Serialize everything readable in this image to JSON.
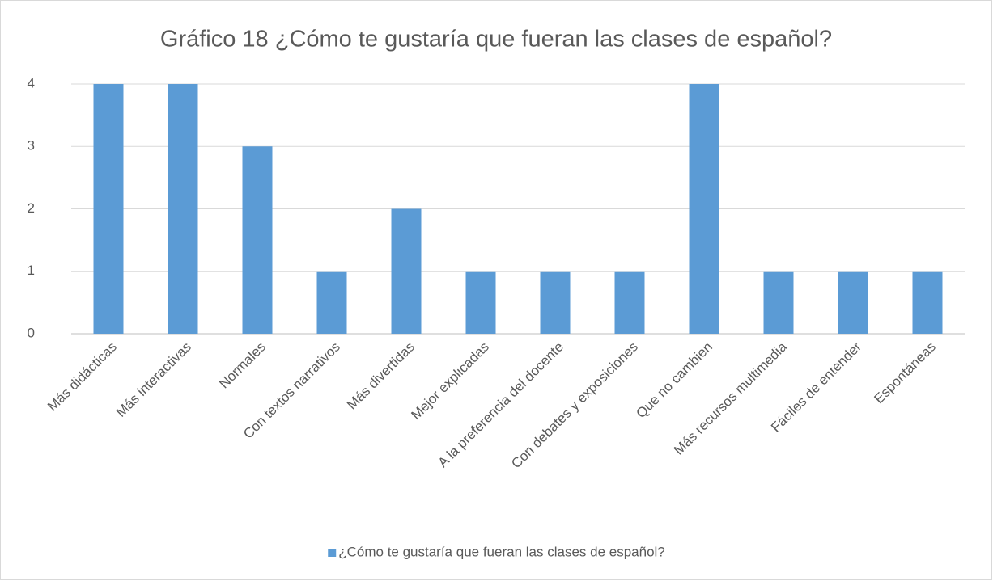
{
  "chart_data": {
    "type": "bar",
    "title": "Gráfico 18 ¿Cómo te gustaría que fueran las clases de español?",
    "categories": [
      "Más didácticas",
      "Más interactivas",
      "Normales",
      "Con textos narrativos",
      "Más divertidas",
      "Mejor explicadas",
      "A la preferencia del docente",
      "Con debates y exposiciones",
      "Que no cambien",
      "Más recursos multimedia",
      "Fáciles de entender",
      "Espontáneas"
    ],
    "series": [
      {
        "name": "¿Cómo te gustaría que fueran las clases de español?",
        "color": "#5b9bd5",
        "values": [
          4,
          4,
          3,
          1,
          2,
          1,
          1,
          1,
          4,
          1,
          1,
          1
        ]
      }
    ],
    "ylim": [
      0,
      4
    ],
    "yticks": [
      0,
      1,
      2,
      3,
      4
    ],
    "grid": true,
    "legend": "bottom"
  }
}
